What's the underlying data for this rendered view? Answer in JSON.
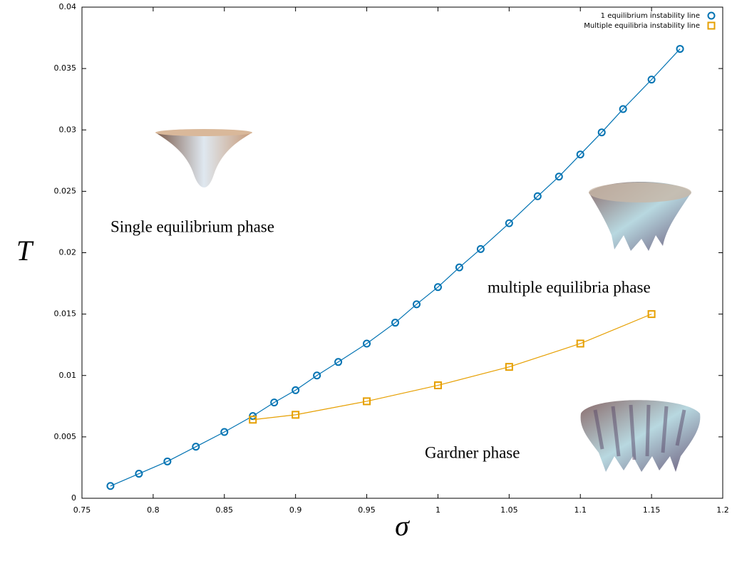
{
  "chart_data": {
    "type": "line",
    "xlabel": "σ",
    "ylabel": "T",
    "xlim": [
      0.75,
      1.2
    ],
    "xticks": [
      0.75,
      0.8,
      0.85,
      0.9,
      0.95,
      1,
      1.05,
      1.1,
      1.15,
      1.2
    ],
    "ylim": [
      0,
      0.04
    ],
    "yticks": [
      0,
      0.005,
      0.01,
      0.015,
      0.02,
      0.025,
      0.03,
      0.035,
      0.04
    ],
    "grid": false,
    "legend": "top-right",
    "series": [
      {
        "name": "1 equilibrium  instability line",
        "color": "#0072b2",
        "marker": "circle",
        "x": [
          0.77,
          0.79,
          0.81,
          0.83,
          0.85,
          0.87,
          0.885,
          0.9,
          0.915,
          0.93,
          0.95,
          0.97,
          0.985,
          1.0,
          1.015,
          1.03,
          1.05,
          1.07,
          1.085,
          1.1,
          1.115,
          1.13,
          1.15,
          1.17
        ],
        "values": [
          0.001,
          0.002,
          0.003,
          0.0042,
          0.0054,
          0.0067,
          0.0078,
          0.0088,
          0.01,
          0.0111,
          0.0126,
          0.0143,
          0.0158,
          0.0172,
          0.0188,
          0.0203,
          0.0224,
          0.0246,
          0.0262,
          0.028,
          0.0298,
          0.0317,
          0.0341,
          0.0366
        ]
      },
      {
        "name": "Multiple equilibria instability line",
        "color": "#e69f00",
        "marker": "square",
        "x": [
          0.87,
          0.9,
          0.95,
          1.0,
          1.05,
          1.1,
          1.15
        ],
        "values": [
          0.0064,
          0.0068,
          0.0079,
          0.0092,
          0.0107,
          0.0126,
          0.015
        ]
      }
    ],
    "annotations": [
      "Single equilibrium phase",
      "multiple equilibria phase",
      "Gardner phase"
    ]
  }
}
